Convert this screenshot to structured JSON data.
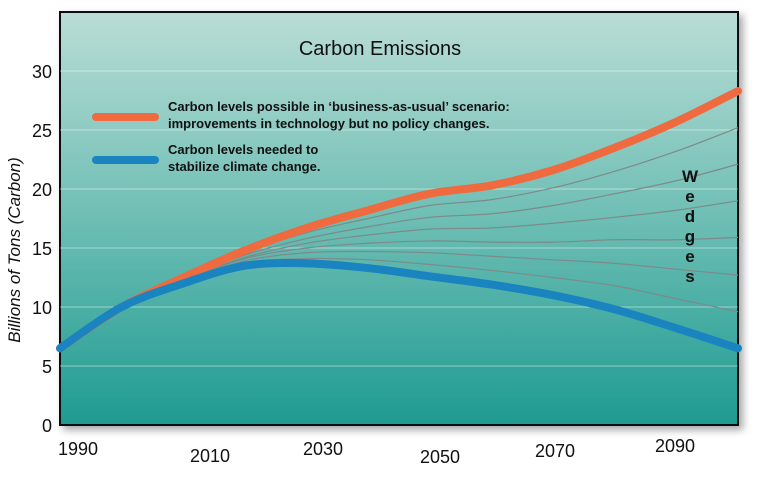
{
  "chart_data": {
    "type": "line",
    "title": "Carbon Emissions",
    "ylabel": "Billions of Tons (Carbon)",
    "xlabel": "",
    "xlim": [
      1990,
      2100
    ],
    "ylim": [
      0,
      35
    ],
    "x_ticks": [
      1990,
      2010,
      2030,
      2050,
      2070,
      2090
    ],
    "y_ticks": [
      0,
      5,
      10,
      15,
      20,
      25,
      30
    ],
    "grid": true,
    "legend_placement": "top-left",
    "annotation": "Wedges",
    "x": [
      1990,
      2000,
      2010,
      2020,
      2030,
      2040,
      2050,
      2060,
      2070,
      2080,
      2090,
      2100
    ],
    "series": [
      {
        "name": "Carbon levels possible in ‘business-as-usual’ scenario: improvements in technology but no policy changes.",
        "legend_lines": [
          "Carbon levels possible in ‘business-as-usual’ scenario:",
          "improvements in technology but no policy changes."
        ],
        "color": "#ef6a3e",
        "values": [
          6.5,
          10,
          12.5,
          14.8,
          16.7,
          18.2,
          19.6,
          20.3,
          21.6,
          23.5,
          25.7,
          28.3
        ]
      },
      {
        "name": "Carbon levels needed to stabilize climate change.",
        "legend_lines": [
          "Carbon levels needed to",
          "stabilize climate change."
        ],
        "color": "#1a84c0",
        "values": [
          6.5,
          10,
          12,
          13.5,
          13.7,
          13.3,
          12.6,
          11.9,
          11,
          9.8,
          8.2,
          6.5
        ]
      }
    ],
    "wedges": {
      "color": "#7d8a8a",
      "series": [
        [
          6.5,
          10,
          12.4,
          14.6,
          16.3,
          17.5,
          18.6,
          19.1,
          20.1,
          21.5,
          23.2,
          25.2
        ],
        [
          6.5,
          10,
          12.4,
          14.4,
          15.8,
          16.8,
          17.6,
          17.9,
          18.6,
          19.6,
          20.7,
          22.1
        ],
        [
          6.5,
          10,
          12.3,
          14.2,
          15.4,
          16.1,
          16.6,
          16.7,
          17.1,
          17.6,
          18.2,
          19.0
        ],
        [
          6.5,
          10,
          12.2,
          14.1,
          15.0,
          15.4,
          15.6,
          15.5,
          15.5,
          15.7,
          15.7,
          15.9
        ],
        [
          6.5,
          10,
          12.1,
          13.9,
          14.6,
          14.7,
          14.6,
          14.3,
          14.0,
          13.7,
          13.2,
          12.7
        ],
        [
          6.5,
          10,
          12.1,
          13.7,
          14.1,
          14.0,
          13.6,
          13.1,
          12.5,
          11.8,
          10.7,
          9.6
        ]
      ]
    }
  }
}
